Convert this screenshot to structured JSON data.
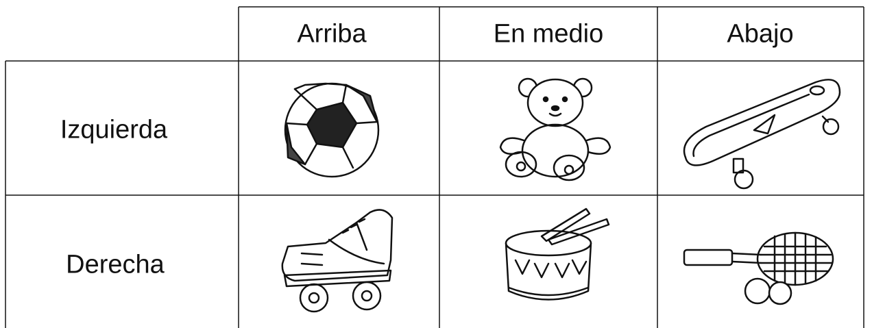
{
  "table": {
    "columns": [
      "Arriba",
      "En medio",
      "Abajo"
    ],
    "rows": [
      {
        "label": "Izquierda"
      },
      {
        "label": "Derecha"
      }
    ]
  }
}
